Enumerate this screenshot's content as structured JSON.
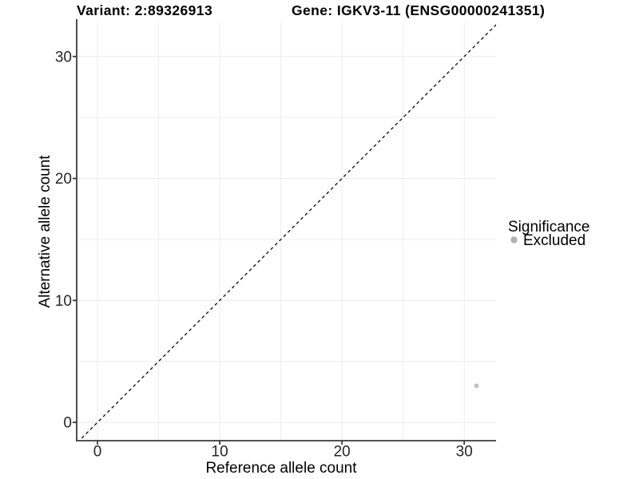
{
  "header": {
    "variant_title": "Variant: 2:89326913",
    "gene_title": "Gene: IGKV3-11 (ENSG00000241351)"
  },
  "axes": {
    "x_label": "Reference allele count",
    "y_label": "Alternative allele count"
  },
  "legend": {
    "title": "Significance",
    "items": [
      {
        "label": "Excluded",
        "marker": "circle-icon",
        "color": "#b2b2b2"
      }
    ]
  },
  "chart_data": {
    "type": "scatter",
    "title": "Variant: 2:89326913   Gene: IGKV3-11 (ENSG00000241351)",
    "xlabel": "Reference allele count",
    "ylabel": "Alternative allele count",
    "xlim": [
      -1.7,
      32.6
    ],
    "ylim": [
      -1.5,
      32.8
    ],
    "x_ticks": [
      0,
      10,
      20,
      30
    ],
    "y_ticks": [
      0,
      10,
      20,
      30
    ],
    "grid": true,
    "grid_interval": 5,
    "grid_max": 30,
    "legend_position": "right",
    "series": [
      {
        "name": "Excluded",
        "color": "#bfbfbf",
        "marker": "circle",
        "points": [
          [
            31,
            3
          ]
        ]
      }
    ],
    "identity_line": {
      "slope": 1,
      "intercept": 0,
      "style": "dashed",
      "color": "#1a1a1a"
    }
  },
  "style": {
    "background": "#ffffff",
    "grid_color": "#ececec",
    "axis_color": "#3a3a3a",
    "tick_color": "#3a3a3a",
    "point_color": "#bfbfbf",
    "legend_marker_color": "#b2b2b2",
    "dash_color": "#1a1a1a"
  }
}
